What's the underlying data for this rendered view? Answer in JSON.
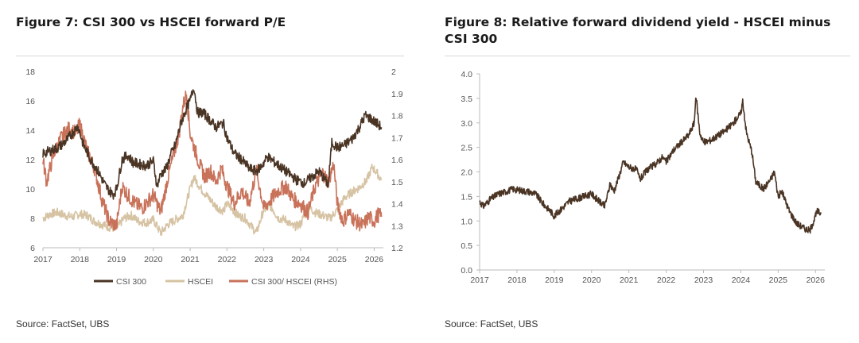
{
  "colors": {
    "csi300": "#4a3424",
    "hscei": "#d6c3a3",
    "ratio": "#c9725a",
    "yield": "#4a3424",
    "axis": "#bbbbbb",
    "tick_text": "#555555"
  },
  "source_left": "Source: FactSet, UBS",
  "source_right": "Source: FactSet, UBS",
  "chart_data": [
    {
      "type": "line",
      "title": "Figure 7: CSI 300 vs HSCEI forward P/E",
      "x_ticks": [
        "2017",
        "2018",
        "2019",
        "2020",
        "2021",
        "2022",
        "2023",
        "2024",
        "2025",
        "2026"
      ],
      "xlim": [
        2017.0,
        2026.25
      ],
      "y_left": {
        "ticks": [
          "6",
          "8",
          "10",
          "12",
          "14",
          "16",
          "18"
        ],
        "lim": [
          6,
          18
        ]
      },
      "y_right": {
        "ticks": [
          "1.2",
          "1.3",
          "1.4",
          "1.5",
          "1.6",
          "1.7",
          "1.8",
          "1.9",
          "2"
        ],
        "lim": [
          1.2,
          2.0
        ]
      },
      "legend": {
        "position": "bottom"
      },
      "series": [
        {
          "name": "CSI 300",
          "axis": "left",
          "color_key": "csi300",
          "x": [
            2017.0,
            2017.2,
            2017.4,
            2017.6,
            2017.8,
            2017.95,
            2018.1,
            2018.3,
            2018.5,
            2018.7,
            2018.9,
            2019.0,
            2019.15,
            2019.3,
            2019.45,
            2019.6,
            2019.8,
            2020.0,
            2020.1,
            2020.2,
            2020.35,
            2020.5,
            2020.6,
            2020.75,
            2020.9,
            2021.0,
            2021.1,
            2021.2,
            2021.35,
            2021.5,
            2021.7,
            2021.9,
            2022.0,
            2022.2,
            2022.4,
            2022.6,
            2022.8,
            2022.95,
            2023.1,
            2023.3,
            2023.5,
            2023.7,
            2023.9,
            2024.1,
            2024.3,
            2024.5,
            2024.7,
            2024.75,
            2024.85,
            2025.0,
            2025.2,
            2025.4,
            2025.6,
            2025.75,
            2025.9,
            2026.0,
            2026.1,
            2026.2
          ],
          "values": [
            12.4,
            12.6,
            12.8,
            13.2,
            13.8,
            14.3,
            13.0,
            12.0,
            11.2,
            10.2,
            9.6,
            10.0,
            12.0,
            12.3,
            11.8,
            11.7,
            11.6,
            11.9,
            10.2,
            11.0,
            11.4,
            12.5,
            13.0,
            14.5,
            15.5,
            16.0,
            17.0,
            15.2,
            15.2,
            14.8,
            14.2,
            14.5,
            13.5,
            12.4,
            12.0,
            11.4,
            11.2,
            11.6,
            12.2,
            11.8,
            11.4,
            11.0,
            10.6,
            10.4,
            10.8,
            11.2,
            10.5,
            10.2,
            13.2,
            12.8,
            13.0,
            13.4,
            14.2,
            15.0,
            14.8,
            14.6,
            14.4,
            14.2
          ]
        },
        {
          "name": "HSCEI",
          "axis": "left",
          "color_key": "hscei",
          "x": [
            2017.0,
            2017.2,
            2017.4,
            2017.6,
            2017.8,
            2018.0,
            2018.2,
            2018.4,
            2018.6,
            2018.8,
            2019.0,
            2019.2,
            2019.4,
            2019.6,
            2019.8,
            2020.0,
            2020.2,
            2020.4,
            2020.6,
            2020.8,
            2021.0,
            2021.1,
            2021.3,
            2021.5,
            2021.7,
            2021.9,
            2022.0,
            2022.3,
            2022.5,
            2022.8,
            2023.0,
            2023.2,
            2023.4,
            2023.6,
            2023.8,
            2024.0,
            2024.2,
            2024.4,
            2024.6,
            2024.8,
            2025.0,
            2025.2,
            2025.4,
            2025.6,
            2025.8,
            2025.95,
            2026.1,
            2026.2
          ],
          "values": [
            8.0,
            8.3,
            8.4,
            8.2,
            8.1,
            8.3,
            8.2,
            7.8,
            7.6,
            7.4,
            7.3,
            8.0,
            8.2,
            7.8,
            7.7,
            7.9,
            7.0,
            7.6,
            7.9,
            8.2,
            10.0,
            10.8,
            10.0,
            9.4,
            8.8,
            8.5,
            9.0,
            8.2,
            8.0,
            7.0,
            8.6,
            8.8,
            8.0,
            7.9,
            7.4,
            7.6,
            8.8,
            8.4,
            8.2,
            8.0,
            8.6,
            9.4,
            9.8,
            10.1,
            10.6,
            11.5,
            11.0,
            10.6
          ]
        },
        {
          "name": "CSI 300/ HSCEI (RHS)",
          "axis": "right",
          "color_key": "ratio",
          "x": [
            2017.0,
            2017.1,
            2017.3,
            2017.5,
            2017.7,
            2017.9,
            2018.0,
            2018.2,
            2018.4,
            2018.6,
            2018.8,
            2019.0,
            2019.15,
            2019.3,
            2019.5,
            2019.7,
            2019.9,
            2020.0,
            2020.2,
            2020.4,
            2020.55,
            2020.7,
            2020.8,
            2020.9,
            2021.0,
            2021.1,
            2021.25,
            2021.4,
            2021.55,
            2021.7,
            2021.85,
            2022.0,
            2022.2,
            2022.4,
            2022.6,
            2022.8,
            2023.0,
            2023.2,
            2023.4,
            2023.6,
            2023.8,
            2024.0,
            2024.2,
            2024.4,
            2024.6,
            2024.75,
            2024.9,
            2025.0,
            2025.15,
            2025.3,
            2025.5,
            2025.7,
            2025.85,
            2026.0,
            2026.1,
            2026.2
          ],
          "values": [
            1.6,
            1.5,
            1.63,
            1.7,
            1.74,
            1.72,
            1.76,
            1.64,
            1.56,
            1.42,
            1.32,
            1.3,
            1.48,
            1.44,
            1.4,
            1.38,
            1.42,
            1.44,
            1.36,
            1.52,
            1.62,
            1.72,
            1.84,
            1.9,
            1.72,
            1.66,
            1.58,
            1.52,
            1.55,
            1.5,
            1.56,
            1.48,
            1.4,
            1.46,
            1.4,
            1.55,
            1.38,
            1.42,
            1.46,
            1.48,
            1.42,
            1.4,
            1.36,
            1.48,
            1.54,
            1.5,
            1.58,
            1.4,
            1.32,
            1.36,
            1.32,
            1.3,
            1.34,
            1.32,
            1.35,
            1.34
          ]
        }
      ]
    },
    {
      "type": "line",
      "title": "Figure 8: Relative forward dividend yield - HSCEI minus CSI 300",
      "x_ticks": [
        "2017",
        "2018",
        "2019",
        "2020",
        "2021",
        "2022",
        "2023",
        "2024",
        "2025",
        "2026"
      ],
      "xlim": [
        2017.0,
        2026.25
      ],
      "y_ticks": [
        "0.0",
        "0.5",
        "1.0",
        "1.5",
        "2.0",
        "2.5",
        "3.0",
        "3.5",
        "4.0"
      ],
      "ylim": [
        0.0,
        4.0
      ],
      "legend": {
        "position": "none"
      },
      "series": [
        {
          "name": "HSCEI minus CSI 300",
          "color_key": "yield",
          "x": [
            2017.0,
            2017.1,
            2017.3,
            2017.5,
            2017.7,
            2017.9,
            2018.1,
            2018.3,
            2018.5,
            2018.7,
            2018.9,
            2019.0,
            2019.2,
            2019.4,
            2019.6,
            2019.8,
            2020.0,
            2020.2,
            2020.35,
            2020.5,
            2020.6,
            2020.75,
            2020.85,
            2021.0,
            2021.2,
            2021.3,
            2021.5,
            2021.7,
            2021.9,
            2022.0,
            2022.2,
            2022.4,
            2022.6,
            2022.75,
            2022.8,
            2022.9,
            2023.0,
            2023.2,
            2023.4,
            2023.6,
            2023.8,
            2024.0,
            2024.05,
            2024.15,
            2024.3,
            2024.4,
            2024.6,
            2024.8,
            2024.9,
            2025.0,
            2025.1,
            2025.3,
            2025.5,
            2025.7,
            2025.85,
            2025.95,
            2026.05,
            2026.15
          ],
          "values": [
            1.4,
            1.3,
            1.45,
            1.55,
            1.6,
            1.65,
            1.62,
            1.6,
            1.55,
            1.35,
            1.2,
            1.1,
            1.25,
            1.4,
            1.45,
            1.5,
            1.55,
            1.4,
            1.3,
            1.75,
            1.6,
            1.95,
            2.2,
            2.1,
            2.05,
            1.85,
            2.05,
            2.15,
            2.3,
            2.2,
            2.45,
            2.6,
            2.75,
            3.0,
            3.55,
            2.8,
            2.6,
            2.65,
            2.75,
            2.85,
            3.0,
            3.2,
            3.45,
            2.8,
            2.4,
            1.8,
            1.65,
            1.85,
            2.0,
            1.5,
            1.6,
            1.2,
            0.95,
            0.85,
            0.8,
            1.0,
            1.2,
            1.15
          ]
        }
      ]
    }
  ]
}
